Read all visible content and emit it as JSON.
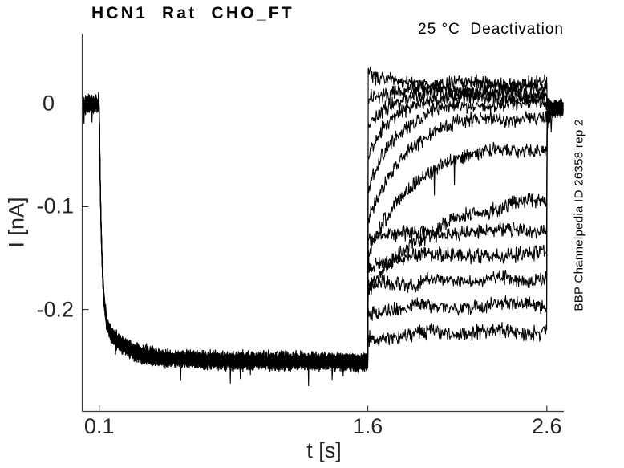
{
  "chart_data": {
    "type": "line",
    "title": "HCN1  Rat  CHO_FT",
    "subtitle": "25 °C  Deactivation",
    "annotation_right": "BBP Channelpedia ID 26358 rep 2",
    "xlabel": "t [s]",
    "ylabel": "I [nA]",
    "xlim": [
      0.005,
      2.695
    ],
    "ylim": [
      -0.299,
      0.068
    ],
    "x_ticks": [
      {
        "value": 0.1,
        "label": "0.1"
      },
      {
        "value": 1.6,
        "label": "1.6"
      },
      {
        "value": 2.6,
        "label": "2.6"
      }
    ],
    "y_ticks": [
      {
        "value": 0,
        "label": "0"
      },
      {
        "value": -0.1,
        "label": "-0.1"
      },
      {
        "value": -0.2,
        "label": "-0.2"
      }
    ],
    "grid": false,
    "legend": null,
    "trace_color": "#000000",
    "axis_color": "#3a3a3a",
    "tick_label_color": "#262626",
    "background_color": "#ffffff",
    "protocol": {
      "description": "HCN1 deactivation recording: 13 overlaid noisy sweeps. Baseline 0 nA until 0.1 s; shared hyperpolarizing conditioning step activating inward current to about -0.25 nA from 0.1 to 1.6 s; at 1.6 s voltage steps produce tail currents that relax to spread steady levels between about +0.02 and -0.22 nA; at 2.6 s all sweeps step back and converge to about 0 nA.",
      "time_start_s": 0.012,
      "time_end_s": 2.692,
      "sample_dt_s": 0.0028,
      "baseline_nA": 0,
      "step1_time_s": 0.1,
      "step2_time_s": 1.6,
      "step3_time_s": 2.6,
      "conditioning": {
        "settled_nA": -0.25,
        "fast_amp_nA": -0.207,
        "fast_tau_s": 0.013,
        "slow_amp_nA": -0.041,
        "slow_tau_s": 0.12,
        "drift_nA": -0.003
      },
      "post_level_nA": -0.0045,
      "post_tau_s": 0.016,
      "post_residual_fraction": 0.1,
      "noise_amp_nA": 0.009,
      "wobble_amp_nA": 0.002,
      "spike_prob": 0.0015,
      "sweeps": [
        {
          "jump_nA": 0.036,
          "steady_nA": 0.021,
          "tau_s": 0.055
        },
        {
          "jump_nA": 0.006,
          "steady_nA": 0.0155,
          "tau_s": 0.3
        },
        {
          "jump_nA": -0.026,
          "steady_nA": 0.0105,
          "tau_s": 0.095
        },
        {
          "jump_nA": -0.057,
          "steady_nA": 0.0055,
          "tau_s": 0.125
        },
        {
          "jump_nA": -0.088,
          "steady_nA": 0.0005,
          "tau_s": 0.155
        },
        {
          "jump_nA": -0.118,
          "steady_nA": -0.0125,
          "tau_s": 0.195
        },
        {
          "jump_nA": -0.149,
          "steady_nA": -0.041,
          "tau_s": 0.23
        },
        {
          "jump_nA": -0.182,
          "steady_nA": -0.085,
          "tau_s": 0.38
        },
        {
          "jump_nA": -0.13,
          "steady_nA": -0.122,
          "tau_s": 0.28
        },
        {
          "jump_nA": -0.153,
          "steady_nA": -0.145,
          "tau_s": 0.28
        },
        {
          "jump_nA": -0.178,
          "steady_nA": -0.17,
          "tau_s": 0.28
        },
        {
          "jump_nA": -0.204,
          "steady_nA": -0.196,
          "tau_s": 0.28
        },
        {
          "jump_nA": -0.229,
          "steady_nA": -0.221,
          "tau_s": 0.28
        }
      ]
    }
  }
}
